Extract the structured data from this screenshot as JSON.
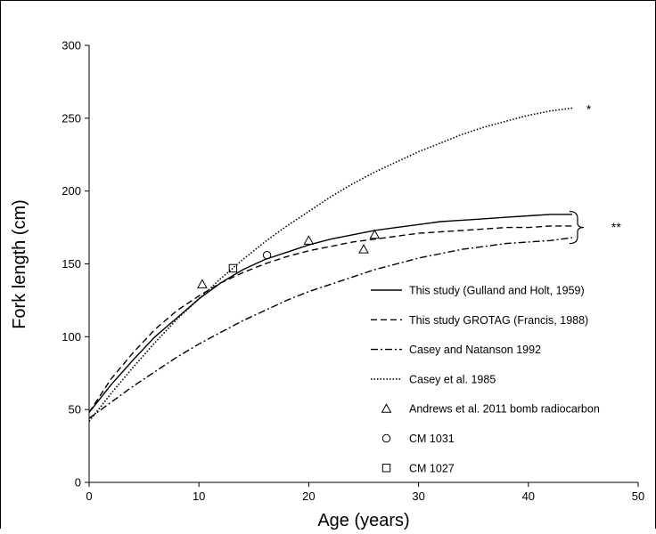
{
  "chart_data": {
    "type": "line",
    "title": "",
    "xlabel": "Age (years)",
    "ylabel": "Fork length (cm)",
    "xlim": [
      0,
      50
    ],
    "ylim": [
      0,
      300
    ],
    "xticks": [
      0,
      10,
      20,
      30,
      40,
      50
    ],
    "yticks": [
      0,
      50,
      100,
      150,
      200,
      250,
      300
    ],
    "grid": false,
    "legend_position": "bottom-right",
    "series": [
      {
        "name": "This study (Gulland and Holt, 1959)",
        "style": "solid",
        "points": [
          [
            0,
            48
          ],
          [
            2,
            67
          ],
          [
            4,
            84
          ],
          [
            6,
            100
          ],
          [
            8,
            113
          ],
          [
            10,
            126
          ],
          [
            12,
            137
          ],
          [
            14,
            146
          ],
          [
            16,
            153
          ],
          [
            18,
            158
          ],
          [
            20,
            163
          ],
          [
            22,
            167
          ],
          [
            24,
            170
          ],
          [
            26,
            173
          ],
          [
            28,
            175
          ],
          [
            30,
            177
          ],
          [
            32,
            179
          ],
          [
            34,
            180
          ],
          [
            36,
            181
          ],
          [
            38,
            182
          ],
          [
            40,
            183
          ],
          [
            42,
            184
          ],
          [
            44,
            184
          ]
        ]
      },
      {
        "name": "This study GROTAG (Francis, 1988)",
        "style": "dashed",
        "points": [
          [
            0,
            48
          ],
          [
            2,
            71
          ],
          [
            4,
            89
          ],
          [
            6,
            105
          ],
          [
            8,
            118
          ],
          [
            10,
            128
          ],
          [
            12,
            137
          ],
          [
            14,
            144
          ],
          [
            16,
            150
          ],
          [
            18,
            155
          ],
          [
            20,
            159
          ],
          [
            22,
            162
          ],
          [
            24,
            165
          ],
          [
            26,
            167
          ],
          [
            28,
            169
          ],
          [
            30,
            171
          ],
          [
            32,
            172
          ],
          [
            34,
            173
          ],
          [
            36,
            174
          ],
          [
            38,
            175
          ],
          [
            40,
            175
          ],
          [
            42,
            176
          ],
          [
            44,
            176
          ]
        ]
      },
      {
        "name": "Casey and Natanson 1992",
        "style": "dashdot",
        "points": [
          [
            0,
            44
          ],
          [
            2,
            55
          ],
          [
            4,
            66
          ],
          [
            6,
            76
          ],
          [
            8,
            86
          ],
          [
            10,
            95
          ],
          [
            12,
            103
          ],
          [
            14,
            111
          ],
          [
            16,
            118
          ],
          [
            18,
            125
          ],
          [
            20,
            131
          ],
          [
            22,
            136
          ],
          [
            24,
            141
          ],
          [
            26,
            146
          ],
          [
            28,
            150
          ],
          [
            30,
            154
          ],
          [
            32,
            157
          ],
          [
            34,
            160
          ],
          [
            36,
            162
          ],
          [
            38,
            164
          ],
          [
            40,
            165
          ],
          [
            42,
            166
          ],
          [
            44,
            168
          ]
        ]
      },
      {
        "name": "Casey et al. 1985",
        "style": "dotted",
        "points": [
          [
            0,
            42
          ],
          [
            2,
            61
          ],
          [
            4,
            79
          ],
          [
            6,
            96
          ],
          [
            8,
            112
          ],
          [
            10,
            126
          ],
          [
            12,
            140
          ],
          [
            14,
            153
          ],
          [
            16,
            165
          ],
          [
            18,
            176
          ],
          [
            20,
            186
          ],
          [
            22,
            196
          ],
          [
            24,
            205
          ],
          [
            26,
            213
          ],
          [
            28,
            220
          ],
          [
            30,
            227
          ],
          [
            32,
            233
          ],
          [
            34,
            239
          ],
          [
            36,
            244
          ],
          [
            38,
            248
          ],
          [
            40,
            252
          ],
          [
            42,
            255
          ],
          [
            44,
            257
          ]
        ]
      },
      {
        "name": "Andrews et al. 2011 bomb radiocarbon",
        "style": "triangle",
        "points": [
          [
            10.3,
            136
          ],
          [
            20,
            166
          ],
          [
            25,
            160
          ],
          [
            26,
            170
          ]
        ]
      },
      {
        "name": "CM 1031",
        "style": "circle",
        "points": [
          [
            16.2,
            156
          ]
        ]
      },
      {
        "name": "CM 1027",
        "style": "square",
        "points": [
          [
            13.1,
            147
          ]
        ]
      }
    ],
    "annotations": [
      {
        "text": "*",
        "x": 45.5,
        "y": 257
      },
      {
        "text": "**",
        "x": 48,
        "y": 176
      }
    ]
  }
}
